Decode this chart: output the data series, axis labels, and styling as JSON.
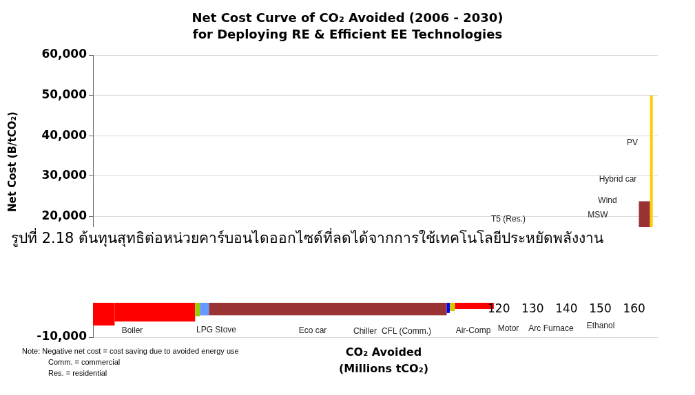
{
  "chart_data": {
    "type": "histogram",
    "title": "Net Cost Curve of CO₂ Avoided (2006 - 2030)\nfor Deploying RE & Efficient EE Technologies",
    "xlabel": "CO₂ Avoided\n(Millions tCO₂)",
    "ylabel": "Net Cost (B/tCO₂)",
    "bins": [
      0,
      6.4,
      30.2,
      31.6,
      34.3,
      104.6,
      105.5,
      107,
      118.5,
      161.4,
      164.7,
      165.5
    ],
    "values": [
      -7100,
      -6100,
      -4800,
      -4600,
      -4600,
      -4000,
      -3500,
      -3000,
      null,
      23700,
      50000
    ],
    "colors": [
      "#ff0000",
      "#ff0000",
      "#99cc00",
      "#6699ff",
      "#993333",
      "#0000ff",
      "#cccc00",
      "#ff0000",
      null,
      "#993333",
      "#ffcc00"
    ],
    "xlim": [
      0,
      167
    ],
    "xticks": [
      120,
      130,
      140,
      150,
      160
    ],
    "ylim": [
      -10000,
      60000
    ],
    "yticks": [
      {
        "value": -10000,
        "label": "-10,000"
      },
      {
        "value": 20000,
        "label": "20,000"
      },
      {
        "value": 30000,
        "label": "30,000"
      },
      {
        "value": 40000,
        "label": "40,000"
      },
      {
        "value": 50000,
        "label": "50,000"
      },
      {
        "value": 60000,
        "label": "60,000"
      }
    ],
    "grid": "y",
    "annotations": [
      "รูปที่ 2.18 ต้นทุนสุทธิต่อหน่วยคาร์บอนไดออกไซด์ที่ลดได้จากการใช้เทคโนโลยีประหยัดพลังงาน",
      "Note: Negative net cost = cost saving due to avoided energy use",
      "Comm. = commercial",
      "Res. = residential",
      "Boiler",
      "LPG Stove",
      "Eco car",
      "Chiller",
      "CFL (Comm.)",
      "Air-Comp",
      "Motor",
      "Arc Furnace",
      "Ethanol",
      "PV",
      "Hybrid car",
      "Wind",
      "MSW",
      "T5 (Res.)"
    ]
  }
}
